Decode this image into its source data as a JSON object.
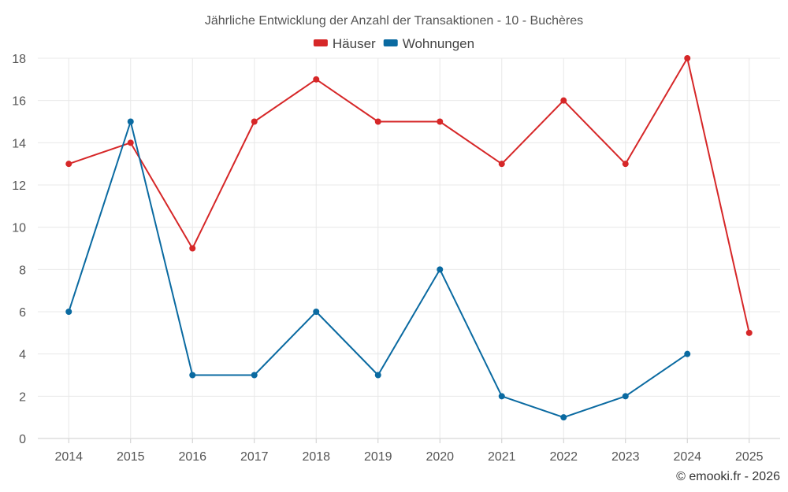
{
  "chart_data": {
    "type": "line",
    "title": "Jährliche Entwicklung der Anzahl der Transaktionen - 10 - Buchères",
    "categories": [
      "2014",
      "2015",
      "2016",
      "2017",
      "2018",
      "2019",
      "2020",
      "2021",
      "2022",
      "2023",
      "2024",
      "2025"
    ],
    "y_ticks": [
      "0",
      "2",
      "4",
      "6",
      "8",
      "10",
      "12",
      "14",
      "16",
      "18"
    ],
    "ylim": [
      0,
      18
    ],
    "grid": true,
    "legend_position": "top-center",
    "series": [
      {
        "name": "Häuser",
        "color": "#d62728",
        "values": [
          13,
          14,
          9,
          15,
          17,
          15,
          15,
          13,
          16,
          13,
          18,
          5
        ]
      },
      {
        "name": "Wohnungen",
        "color": "#0a6aa1",
        "values": [
          6,
          15,
          3,
          3,
          6,
          3,
          8,
          2,
          1,
          2,
          4,
          null
        ]
      }
    ]
  },
  "credit": "© emooki.fr - 2026"
}
